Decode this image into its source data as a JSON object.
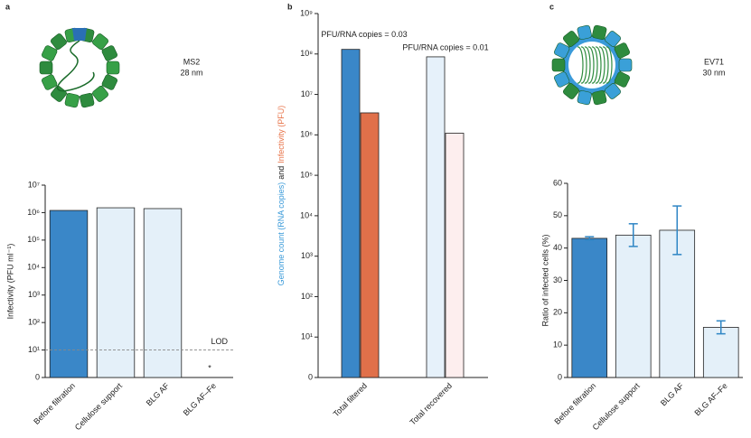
{
  "chart_data": [
    {
      "type": "bar",
      "panel": "a",
      "virus_name": "MS2",
      "virus_size": "28 nm",
      "y_label": "Infectivity (PFU ml⁻¹)",
      "categories": [
        "Before filtration",
        "Cellulose support",
        "BLG AF",
        "BLG AF–Fe"
      ],
      "values": [
        1200000,
        1500000,
        1400000,
        1
      ],
      "colors": [
        "#3a87c8",
        "#e4f0f9",
        "#e4f0f9",
        "#e4f0f9"
      ],
      "log_scale": true,
      "ylim": [
        1,
        10000000
      ],
      "yticks": [
        {
          "value": 1,
          "label": "0"
        },
        {
          "value": 10,
          "label": "10¹"
        },
        {
          "value": 100,
          "label": "10²"
        },
        {
          "value": 1000,
          "label": "10³"
        },
        {
          "value": 10000,
          "label": "10⁴"
        },
        {
          "value": 100000,
          "label": "10⁵"
        },
        {
          "value": 1000000,
          "label": "10⁶"
        },
        {
          "value": 10000000,
          "label": "10⁷"
        }
      ],
      "reference_line": {
        "text": "LOD",
        "value": 10
      },
      "annotations": [
        {
          "text": "*",
          "category": 3
        }
      ]
    },
    {
      "type": "grouped_bar",
      "panel": "b",
      "y_label_parts": [
        {
          "text": "Genome count (RNA copies)",
          "color": "#3a9ad9"
        },
        {
          "text": "and",
          "color": "#222"
        },
        {
          "text": "Infectivity (PFU)",
          "color": "#e8744a"
        }
      ],
      "categories": [
        "Total filtered",
        "Total recovered"
      ],
      "series": [
        {
          "values": [
            130000000,
            85000000
          ],
          "colors": [
            "#3a87c8",
            "#e6f1fa"
          ]
        },
        {
          "values": [
            3500000,
            1100000
          ],
          "colors": [
            "#e0704a",
            "#fdeeee"
          ]
        }
      ],
      "log_scale": true,
      "ylim": [
        1,
        1000000000
      ],
      "yticks": [
        {
          "value": 1,
          "label": "0"
        },
        {
          "value": 10,
          "label": "10¹"
        },
        {
          "value": 100,
          "label": "10²"
        },
        {
          "value": 1000,
          "label": "10³"
        },
        {
          "value": 10000,
          "label": "10⁴"
        },
        {
          "value": 100000,
          "label": "10⁵"
        },
        {
          "value": 1000000,
          "label": "10⁶"
        },
        {
          "value": 10000000,
          "label": "10⁷"
        },
        {
          "value": 100000000,
          "label": "10⁸"
        },
        {
          "value": 1000000000,
          "label": "10⁹"
        }
      ],
      "annotations": [
        {
          "text": "PFU/RNA copies = 0.03",
          "category": 0
        },
        {
          "text": "PFU/RNA copies = 0.01",
          "category": 1
        }
      ]
    },
    {
      "type": "error_bar",
      "panel": "c",
      "virus_name": "EV71",
      "virus_size": "30 nm",
      "y_label": "Ratio of infected cells (%)",
      "categories": [
        "Before filtration",
        "Cellulose support",
        "BLG AF",
        "BLG AF–Fe"
      ],
      "values": [
        43,
        44,
        45.5,
        15.5
      ],
      "errors": [
        0.5,
        3.5,
        7.5,
        2
      ],
      "colors": [
        "#3a87c8",
        "#e4f0f9",
        "#e4f0f9",
        "#e4f0f9"
      ],
      "error_color": "#2f86c5",
      "log_scale": false,
      "ylim": [
        0,
        60
      ],
      "yticks": [
        0,
        10,
        20,
        30,
        40,
        50,
        60
      ]
    }
  ]
}
